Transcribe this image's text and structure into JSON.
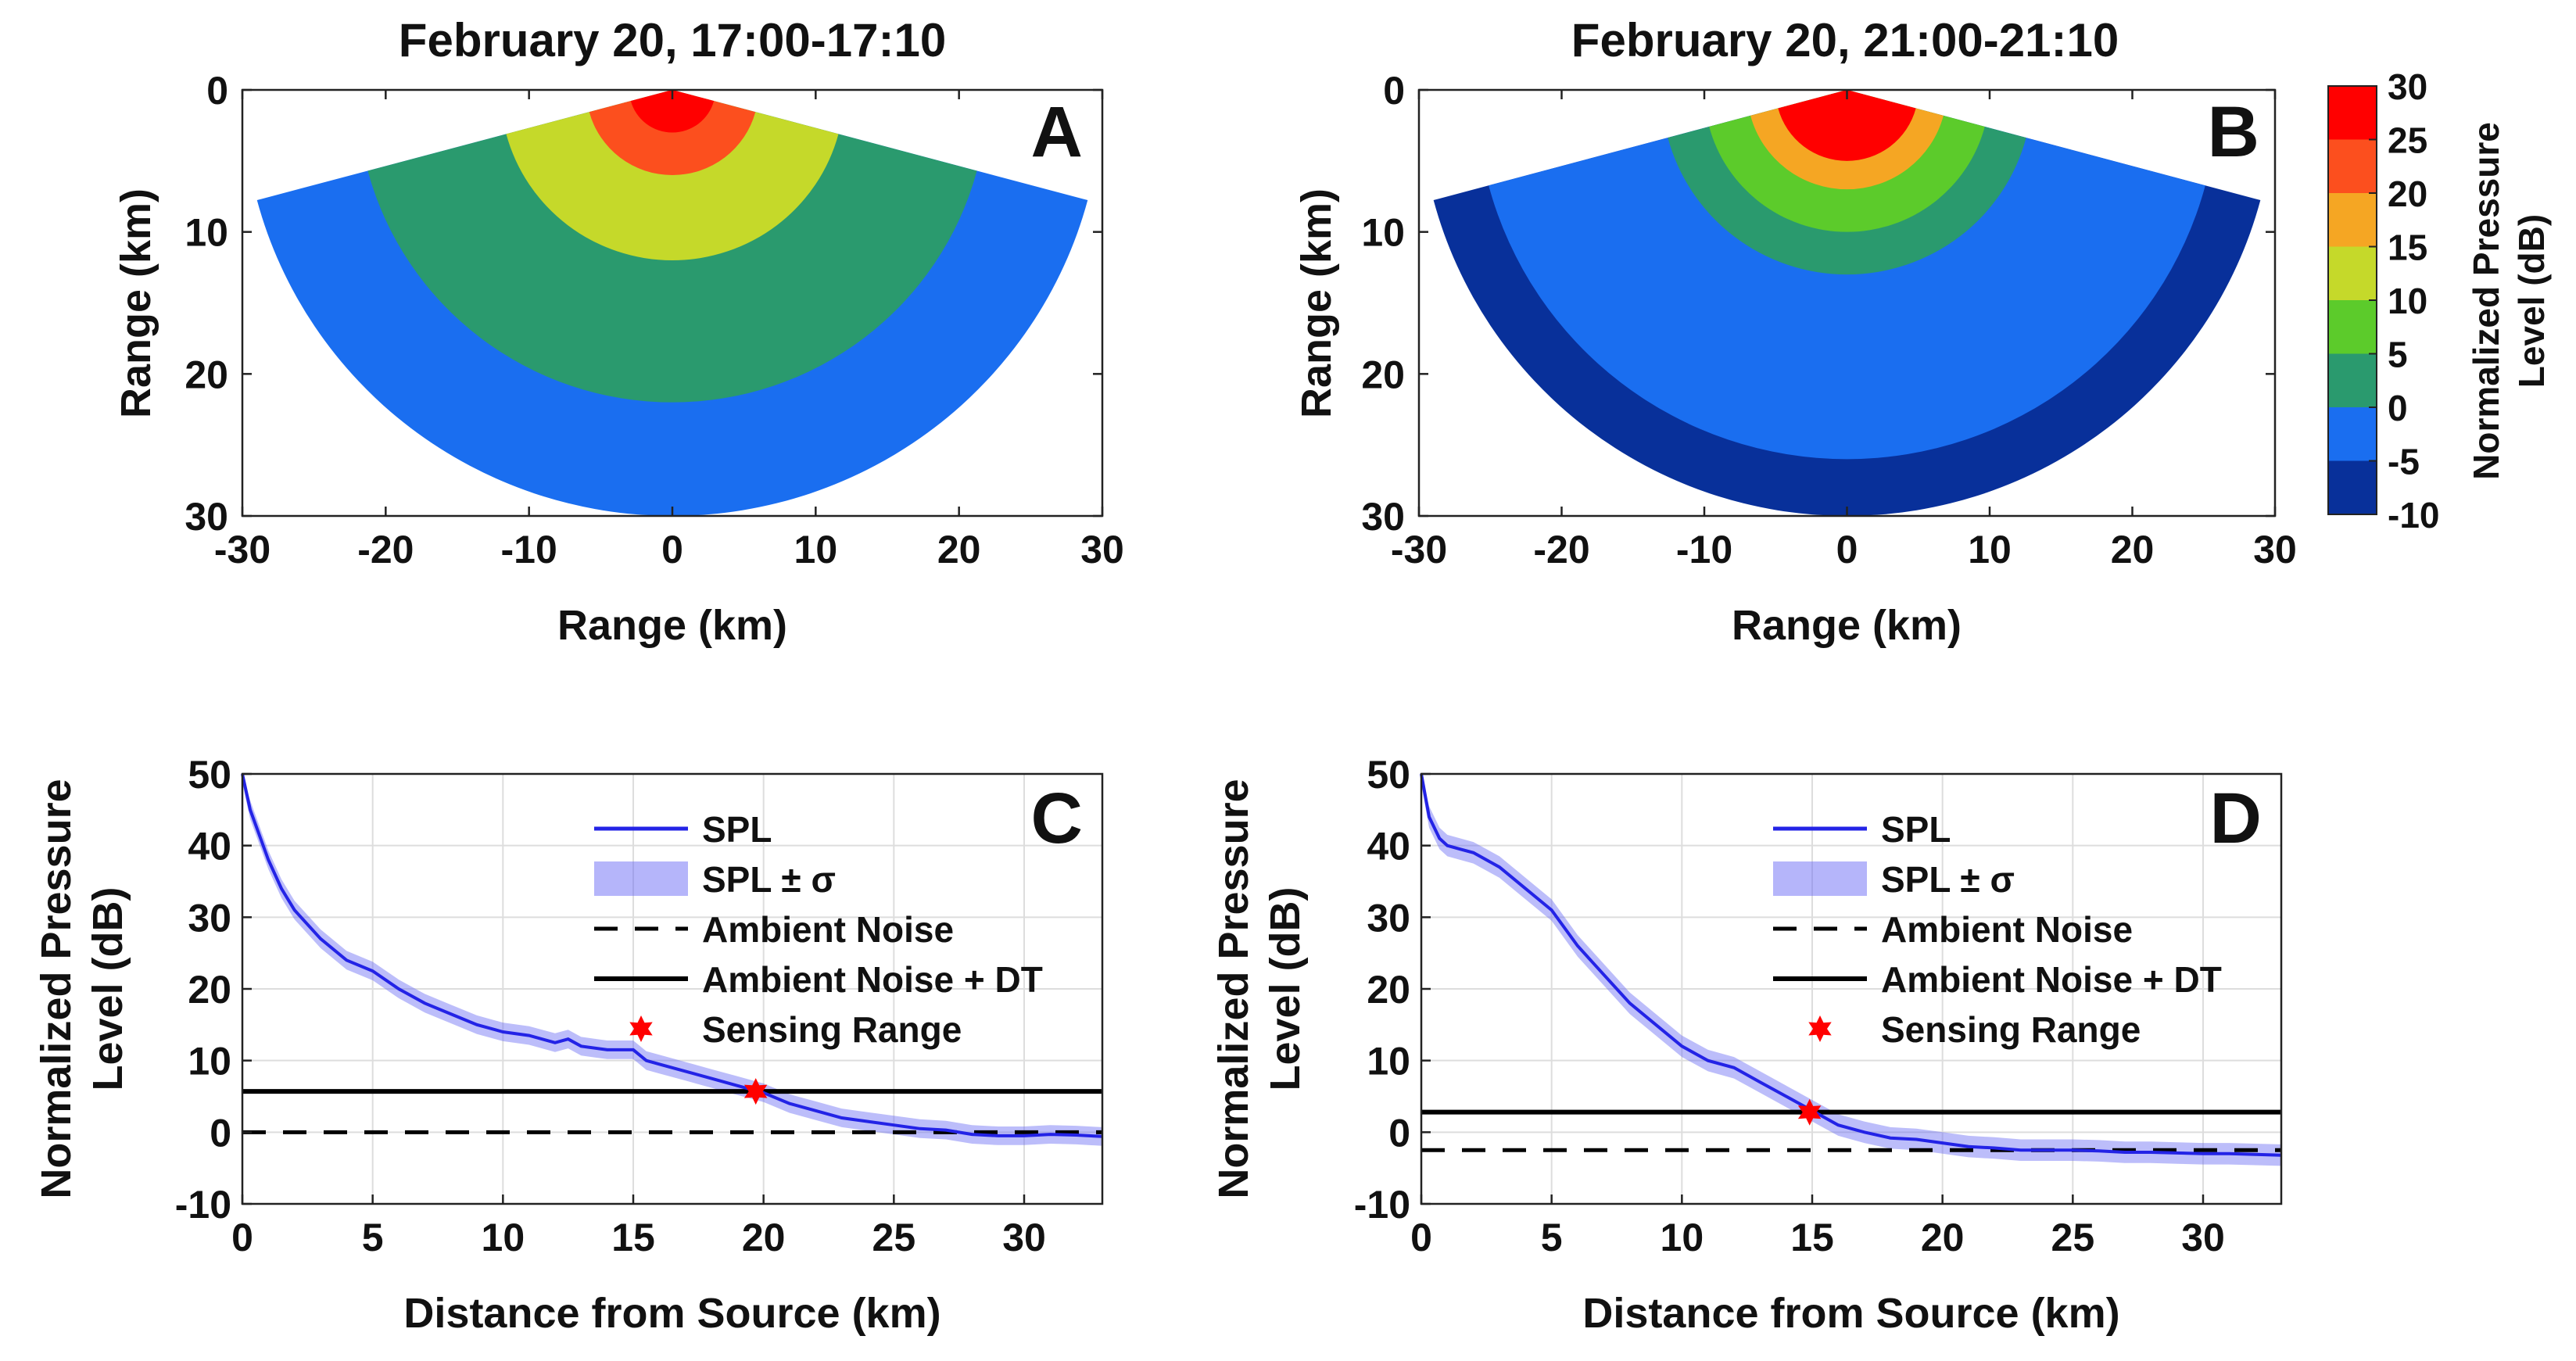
{
  "figure": {
    "colorbar": {
      "label_line1": "Normalized Pressure",
      "label_line2": "Level (dB)",
      "ticks": [
        30,
        25,
        20,
        15,
        10,
        5,
        0,
        -5,
        -10
      ],
      "levels": [
        {
          "from": 25,
          "to": 30,
          "color": "#ff0000"
        },
        {
          "from": 20,
          "to": 25,
          "color": "#fc4f1e"
        },
        {
          "from": 15,
          "to": 20,
          "color": "#f5a623"
        },
        {
          "from": 10,
          "to": 15,
          "color": "#c5d92a"
        },
        {
          "from": 5,
          "to": 10,
          "color": "#5ccb2b"
        },
        {
          "from": 0,
          "to": 5,
          "color": "#2a9a6e"
        },
        {
          "from": -5,
          "to": 0,
          "color": "#1a6ef0"
        },
        {
          "from": -10,
          "to": -5,
          "color": "#08309a"
        }
      ]
    }
  },
  "chart_data": [
    {
      "panel": "A",
      "type": "heatmap",
      "title": "February 20, 17:00-17:10",
      "xlabel": "Range (km)",
      "ylabel": "Range (km)",
      "xlim": [
        -30,
        30
      ],
      "ylim": [
        0,
        30
      ],
      "y_reversed": true,
      "xticks": [
        "-30",
        "-20",
        "-10",
        "0",
        "10",
        "20",
        "30"
      ],
      "yticks": [
        "0",
        "10",
        "20",
        "30"
      ],
      "sector_half_angle_deg": 75,
      "max_range_km": 30,
      "bands": [
        {
          "r_max": 3,
          "value": 27
        },
        {
          "r_max": 6,
          "value": 20
        },
        {
          "r_max": 12,
          "value": 12
        },
        {
          "r_max": 22,
          "value": 3
        },
        {
          "r_max": 30,
          "value": -3
        }
      ]
    },
    {
      "panel": "B",
      "type": "heatmap",
      "title": "February 20, 21:00-21:10",
      "xlabel": "Range (km)",
      "ylabel": "Range (km)",
      "xlim": [
        -30,
        30
      ],
      "ylim": [
        0,
        30
      ],
      "y_reversed": true,
      "xticks": [
        "-30",
        "-20",
        "-10",
        "0",
        "10",
        "20",
        "30"
      ],
      "yticks": [
        "0",
        "10",
        "20",
        "30"
      ],
      "sector_half_angle_deg": 75,
      "max_range_km": 30,
      "bands": [
        {
          "r_max": 5,
          "value": 27
        },
        {
          "r_max": 7,
          "value": 18
        },
        {
          "r_max": 10,
          "value": 8
        },
        {
          "r_max": 13,
          "value": 2
        },
        {
          "r_max": 26,
          "value": -3
        },
        {
          "r_max": 30,
          "value": -7
        }
      ]
    },
    {
      "panel": "C",
      "type": "line",
      "xlabel": "Distance from Source (km)",
      "ylabel_line1": "Normalized Pressure",
      "ylabel_line2": "Level (dB)",
      "xlim": [
        0,
        33
      ],
      "ylim": [
        -10,
        50
      ],
      "xticks": [
        0,
        5,
        10,
        15,
        20,
        25,
        30
      ],
      "yticks": [
        50,
        40,
        30,
        20,
        10,
        0,
        -10
      ],
      "grid": true,
      "legend_position": "top-right",
      "legend": [
        "SPL",
        "SPL ± σ",
        "Ambient Noise",
        "Ambient Noise + DT",
        "Sensing Range"
      ],
      "ambient_noise": 0,
      "ambient_noise_plus_dt": 5.7,
      "sensing_range": {
        "x": 19.7,
        "y": 5.7
      },
      "sigma": 1.3,
      "spl": {
        "x": [
          0,
          0.3,
          0.7,
          1,
          1.5,
          2,
          3,
          4,
          5,
          6,
          7,
          8,
          9,
          10,
          11,
          12,
          12.5,
          13,
          14,
          15,
          15.5,
          16,
          17,
          18,
          19,
          20,
          21,
          22,
          23,
          24,
          25,
          26,
          27,
          28,
          29,
          30,
          31,
          32,
          33
        ],
        "y": [
          50,
          45,
          41,
          38,
          34,
          31,
          27,
          24,
          22.5,
          20,
          18,
          16.5,
          15,
          14,
          13.5,
          12.5,
          13,
          12,
          11.5,
          11.5,
          10,
          9.5,
          8.5,
          7.5,
          6.5,
          5.5,
          4,
          3,
          2,
          1.5,
          1,
          0.5,
          0.3,
          -0.3,
          -0.5,
          -0.5,
          -0.3,
          -0.4,
          -0.6
        ]
      }
    },
    {
      "panel": "D",
      "type": "line",
      "xlabel": "Distance from Source (km)",
      "ylabel_line1": "Normalized Pressure",
      "ylabel_line2": "Level (dB)",
      "xlim": [
        0,
        33
      ],
      "ylim": [
        -10,
        50
      ],
      "xticks": [
        0,
        5,
        10,
        15,
        20,
        25,
        30
      ],
      "yticks": [
        50,
        40,
        30,
        20,
        10,
        0,
        -10
      ],
      "grid": true,
      "legend_position": "top-right",
      "legend": [
        "SPL",
        "SPL ± σ",
        "Ambient Noise",
        "Ambient Noise + DT",
        "Sensing Range"
      ],
      "ambient_noise": -2.5,
      "ambient_noise_plus_dt": 2.8,
      "sensing_range": {
        "x": 14.9,
        "y": 2.8
      },
      "sigma": 1.5,
      "spl": {
        "x": [
          0,
          0.3,
          0.7,
          1,
          1.5,
          2,
          3,
          4,
          5,
          6,
          7,
          8,
          9,
          10,
          11,
          12,
          13,
          14,
          15,
          16,
          17,
          18,
          19,
          20,
          21,
          22,
          23,
          24,
          25,
          26,
          27,
          28,
          29,
          30,
          31,
          32,
          33
        ],
        "y": [
          50,
          44,
          41,
          40,
          39.5,
          39,
          37,
          34,
          31,
          26,
          22,
          18,
          15,
          12,
          10,
          9,
          7,
          5,
          3,
          1,
          0,
          -0.8,
          -1,
          -1.5,
          -2,
          -2.2,
          -2.5,
          -2.5,
          -2.5,
          -2.6,
          -2.8,
          -2.8,
          -2.9,
          -3,
          -3,
          -3.1,
          -3.2
        ]
      }
    }
  ]
}
